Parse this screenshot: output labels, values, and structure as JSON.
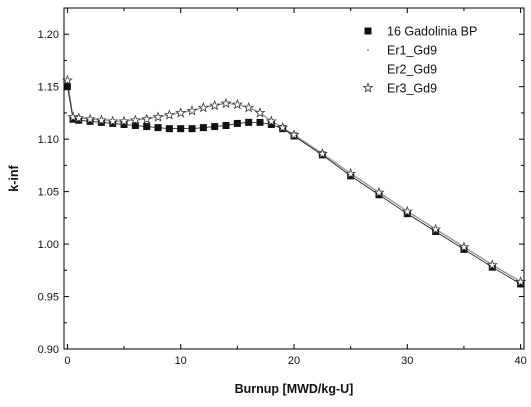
{
  "chart_data": {
    "type": "scatter",
    "xlabel": "Burnup [MWD/kg-U]",
    "ylabel": "k-inf",
    "xlim": [
      -0.3,
      40.3
    ],
    "ylim": [
      0.9,
      1.225
    ],
    "x_ticks": [
      0,
      10,
      20,
      30,
      40
    ],
    "y_ticks": [
      0.9,
      0.95,
      1.0,
      1.05,
      1.1,
      1.15,
      1.2
    ],
    "x_tick_labels": [
      "0",
      "10",
      "20",
      "30",
      "40"
    ],
    "y_tick_labels": [
      "0.90",
      "0.95",
      "1.00",
      "1.05",
      "1.10",
      "1.15",
      "1.20"
    ],
    "grid": false,
    "legend_position": "top-right",
    "colors": {
      "axis": "#000000",
      "series": "#111111",
      "faint": "#9a9a9a"
    },
    "series": [
      {
        "name": "16 Gadolinia BP",
        "marker": "filled-square",
        "x": [
          0,
          0.5,
          1,
          2,
          3,
          4,
          5,
          6,
          7,
          8,
          9,
          10,
          11,
          12,
          13,
          14,
          15,
          16,
          17,
          18,
          19,
          20,
          22.5,
          25,
          27.5,
          30,
          32.5,
          35,
          37.5,
          40
        ],
        "y": [
          1.15,
          1.119,
          1.118,
          1.117,
          1.116,
          1.115,
          1.114,
          1.113,
          1.112,
          1.111,
          1.11,
          1.11,
          1.11,
          1.111,
          1.112,
          1.113,
          1.115,
          1.116,
          1.116,
          1.114,
          1.11,
          1.103,
          1.085,
          1.065,
          1.047,
          1.029,
          1.012,
          0.995,
          0.978,
          0.962
        ]
      },
      {
        "name": "Er1_Gd9",
        "marker": "dot",
        "x": [
          0,
          0.5,
          1,
          2,
          3,
          4,
          5,
          6,
          7,
          8,
          9,
          10,
          11,
          12,
          13,
          14,
          15,
          16,
          17,
          18,
          19,
          20,
          22.5,
          25,
          27.5,
          30,
          32.5,
          35,
          37.5,
          40
        ],
        "y": [
          1.158,
          1.122,
          1.121,
          1.12,
          1.119,
          1.118,
          1.118,
          1.119,
          1.12,
          1.122,
          1.124,
          1.126,
          1.128,
          1.131,
          1.133,
          1.135,
          1.134,
          1.131,
          1.126,
          1.118,
          1.111,
          1.105,
          1.087,
          1.068,
          1.05,
          1.032,
          1.015,
          0.998,
          0.981,
          0.965
        ]
      },
      {
        "name": "Er2_Gd9",
        "marker": "none",
        "x": [],
        "y": []
      },
      {
        "name": "Er3_Gd9",
        "marker": "open-star",
        "x": [
          0,
          0.5,
          1,
          2,
          3,
          4,
          5,
          6,
          7,
          8,
          9,
          10,
          11,
          12,
          13,
          14,
          15,
          16,
          17,
          18,
          19,
          20,
          22.5,
          25,
          27.5,
          30,
          32.5,
          35,
          37.5,
          40
        ],
        "y": [
          1.156,
          1.121,
          1.12,
          1.119,
          1.118,
          1.117,
          1.117,
          1.118,
          1.119,
          1.121,
          1.123,
          1.125,
          1.127,
          1.13,
          1.132,
          1.134,
          1.133,
          1.13,
          1.125,
          1.117,
          1.111,
          1.104,
          1.086,
          1.067,
          1.049,
          1.031,
          1.014,
          0.997,
          0.98,
          0.964
        ]
      }
    ]
  }
}
